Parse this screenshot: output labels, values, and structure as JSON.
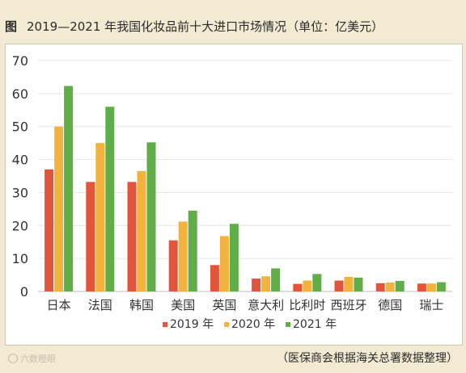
{
  "figure_label": "图",
  "title": "2019—2021 年我国化妆品前十大进口市场情况（单位：亿美元）",
  "source": "（医保商会根据海关总署数据整理）",
  "watermark": "六数瞪眼",
  "colors": {
    "background": "#f3ead3",
    "grid": "#e6e6e6",
    "series_2019": "#e2553a",
    "series_2020": "#f2b33d",
    "series_2021": "#5fae4a"
  },
  "chart_data": {
    "type": "bar",
    "categories": [
      "日本",
      "法国",
      "韩国",
      "美国",
      "英国",
      "意大利",
      "比利时",
      "西班牙",
      "德国",
      "瑞士"
    ],
    "series": [
      {
        "name": "2019 年",
        "color": "#e2553a",
        "values": [
          37,
          33.2,
          33.2,
          15.5,
          8,
          3.9,
          2.3,
          3.3,
          2.5,
          2.4
        ]
      },
      {
        "name": "2020 年",
        "color": "#f2b33d",
        "values": [
          50,
          45,
          36.5,
          21.2,
          16.8,
          4.6,
          3.3,
          4.4,
          2.7,
          2.4
        ]
      },
      {
        "name": "2021 年",
        "color": "#5fae4a",
        "values": [
          62.3,
          56,
          45.2,
          24.5,
          20.5,
          7,
          5.3,
          4.2,
          3.2,
          2.8
        ]
      }
    ],
    "y_ticks": [
      "0",
      "10",
      "20",
      "30",
      "40",
      "50",
      "60",
      "70"
    ],
    "ylim": [
      0,
      70
    ],
    "grid": true,
    "legend_placement": "bottom-center"
  }
}
